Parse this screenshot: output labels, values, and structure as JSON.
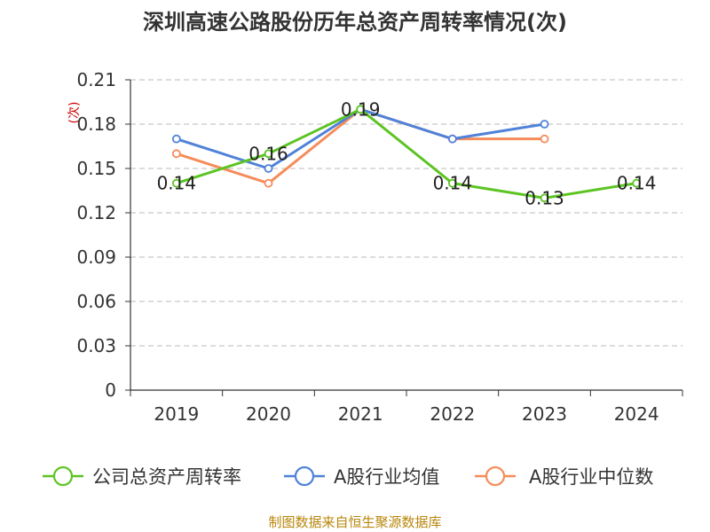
{
  "chart_data": {
    "type": "line",
    "title": "深圳高速公路股份历年总资产周转率情况(次)",
    "unit": "(次)",
    "categories": [
      "2019",
      "2020",
      "2021",
      "2022",
      "2023",
      "2024"
    ],
    "yticks": [
      "0",
      "0.03",
      "0.06",
      "0.09",
      "0.12",
      "0.15",
      "0.18",
      "0.21"
    ],
    "ylim": [
      0,
      0.21
    ],
    "grid": true,
    "legend_position": "bottom",
    "series": [
      {
        "name": "公司总资产周转率",
        "color": "#5dc424",
        "values": [
          0.14,
          0.16,
          0.19,
          0.14,
          0.13,
          0.14
        ],
        "labels": [
          "0.14",
          "0.16",
          "0.19",
          "0.14",
          "0.13",
          "0.14"
        ]
      },
      {
        "name": "A股行业均值",
        "color": "#4f82d8",
        "values": [
          0.17,
          0.15,
          0.19,
          0.17,
          0.18,
          null
        ]
      },
      {
        "name": "A股行业中位数",
        "color": "#f58c5a",
        "values": [
          0.16,
          0.14,
          0.19,
          0.17,
          0.17,
          null
        ]
      }
    ],
    "source": "制图数据来自恒生聚源数据库"
  }
}
